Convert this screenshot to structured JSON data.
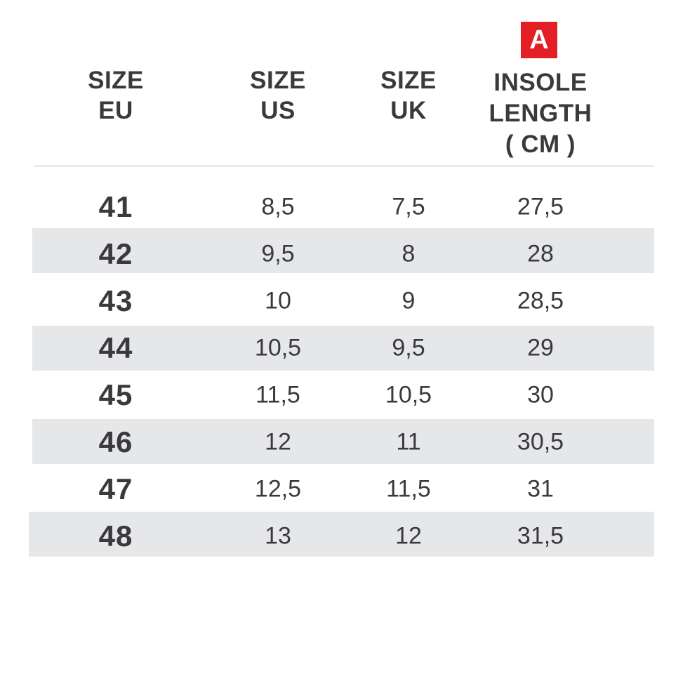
{
  "badge": "A",
  "header": {
    "columns": [
      {
        "lines": [
          "SIZE",
          "EU"
        ]
      },
      {
        "lines": [
          "SIZE",
          "US"
        ]
      },
      {
        "lines": [
          "SIZE",
          "UK"
        ]
      },
      {
        "lines": [
          "INSOLE",
          "LENGTH",
          "( CM )"
        ]
      }
    ]
  },
  "table": {
    "rows": [
      [
        "41",
        "8,5",
        "7,5",
        "27,5"
      ],
      [
        "42",
        "9,5",
        "8",
        "28"
      ],
      [
        "43",
        "10",
        "9",
        "28,5"
      ],
      [
        "44",
        "10,5",
        "9,5",
        "29"
      ],
      [
        "45",
        "11,5",
        "10,5",
        "30"
      ],
      [
        "46",
        "12",
        "11",
        "30,5"
      ],
      [
        "47",
        "12,5",
        "11,5",
        "31"
      ],
      [
        "48",
        "13",
        "12",
        "31,5"
      ]
    ]
  }
}
